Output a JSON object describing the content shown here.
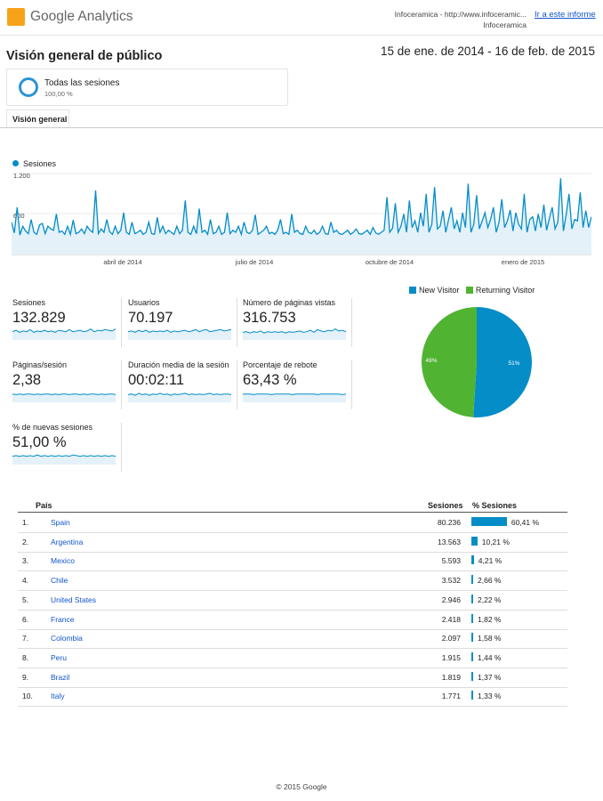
{
  "header": {
    "logo_text": "Google Analytics",
    "account_line1": "Infoceramica - http://www.infoceramic...",
    "account_line2": "Infoceramica",
    "open_report_link": "Ir a este informe"
  },
  "page": {
    "title": "Visión general de público",
    "date_range": "15 de ene. de 2014 - 16 de feb. de 2015"
  },
  "segment": {
    "name": "Todas las sesiones",
    "percent": "100,00 %"
  },
  "tab": {
    "label": "Visión general"
  },
  "colors": {
    "accent": "#058dc7",
    "link": "#1155cc",
    "new_visitor": "#058dc7",
    "returning_visitor": "#50b432",
    "logo": "#f7a31a"
  },
  "chart_data": [
    {
      "type": "line",
      "series": [
        {
          "name": "Sesiones"
        }
      ],
      "ylim": [
        0,
        1200
      ],
      "y_ticks": [
        "1.200",
        "600"
      ],
      "x_tick_labels": [
        "abril de 2014",
        "julio de 2014",
        "octubre de 2014",
        "enero de 2015"
      ],
      "y_profile": [
        480,
        320,
        700,
        290,
        420,
        350,
        310,
        520,
        330,
        300,
        440,
        460,
        310,
        420,
        380,
        360,
        600,
        330,
        350,
        300,
        420,
        300,
        510,
        310,
        330,
        380,
        310,
        420,
        360,
        330,
        950,
        310,
        380,
        330,
        520,
        340,
        300,
        420,
        310,
        360,
        620,
        330,
        300,
        480,
        310,
        330,
        360,
        300,
        330,
        480,
        310,
        300,
        550,
        330,
        420,
        310,
        360,
        330,
        300,
        420,
        310,
        360,
        800,
        330,
        300,
        420,
        310,
        680,
        330,
        360,
        300,
        520,
        310,
        330,
        420,
        300,
        330,
        620,
        310,
        360,
        330,
        420,
        300,
        480,
        330,
        310,
        360,
        590,
        300,
        330,
        360,
        420,
        310,
        330,
        300,
        360,
        520,
        310,
        330,
        300,
        600,
        330,
        360,
        310,
        300,
        420,
        330,
        310,
        360,
        300,
        330,
        420,
        310,
        300,
        480,
        330,
        360,
        310,
        300,
        330,
        360,
        300,
        330,
        380,
        310,
        300,
        330,
        360,
        300,
        400,
        320,
        300,
        330,
        360,
        850,
        330,
        390,
        760,
        330,
        420,
        600,
        330,
        800,
        400,
        500,
        330,
        620,
        420,
        900,
        330,
        450,
        1000,
        380,
        420,
        650,
        330,
        520,
        700,
        380,
        500,
        330,
        620,
        400,
        1050,
        330,
        450,
        880,
        380,
        500,
        620,
        400,
        520,
        700,
        330,
        480,
        820,
        400,
        500,
        660,
        350,
        620,
        450,
        380,
        900,
        330,
        520,
        560,
        350,
        600,
        400,
        740,
        360,
        540,
        700,
        380,
        480,
        1130,
        350,
        600,
        900,
        380,
        520,
        500,
        920,
        400,
        650,
        400,
        560
      ]
    },
    {
      "type": "pie",
      "legend_position": "top",
      "series": [
        {
          "name": "New Visitor",
          "value": 51,
          "label": "51%"
        },
        {
          "name": "Returning Visitor",
          "value": 49,
          "label": "49%"
        }
      ]
    }
  ],
  "metrics": [
    {
      "label": "Sesiones",
      "value": "132.829",
      "spark": [
        12,
        14,
        11,
        13,
        12,
        15,
        11,
        13,
        12,
        14,
        12,
        13,
        11,
        14,
        13,
        12,
        15,
        12,
        13,
        14,
        12,
        13,
        16,
        12,
        14,
        13,
        15,
        14,
        13,
        16
      ]
    },
    {
      "label": "Usuarios",
      "value": "70.197",
      "spark": [
        12,
        13,
        11,
        14,
        12,
        14,
        11,
        13,
        12,
        13,
        12,
        14,
        11,
        13,
        12,
        13,
        14,
        12,
        13,
        15,
        12,
        14,
        15,
        12,
        13,
        14,
        15,
        13,
        14,
        15
      ]
    },
    {
      "label": "Número de páginas vistas",
      "value": "316.753",
      "spark": [
        11,
        12,
        10,
        12,
        11,
        13,
        10,
        12,
        11,
        12,
        11,
        12,
        10,
        12,
        11,
        12,
        13,
        11,
        12,
        14,
        11,
        15,
        13,
        12,
        14,
        13,
        16,
        13,
        14,
        12
      ]
    },
    {
      "label": "Páginas/sesión",
      "value": "2,38",
      "spark": [
        12,
        11,
        12,
        11,
        12,
        12,
        11,
        12,
        11,
        12,
        12,
        11,
        12,
        11,
        12,
        12,
        11,
        12,
        12,
        11,
        12,
        11,
        12,
        12,
        11,
        12,
        11,
        12,
        12,
        11
      ]
    },
    {
      "label": "Duración media de la sesión",
      "value": "00:02:11",
      "spark": [
        11,
        12,
        10,
        13,
        11,
        12,
        10,
        12,
        11,
        13,
        11,
        12,
        10,
        12,
        11,
        12,
        13,
        11,
        12,
        11,
        12,
        11,
        12,
        13,
        11,
        12,
        11,
        12,
        12,
        11
      ]
    },
    {
      "label": "Porcentaje de rebote",
      "value": "63,43 %",
      "spark": [
        12,
        12,
        12,
        11,
        12,
        12,
        12,
        12,
        11,
        12,
        12,
        12,
        12,
        12,
        11,
        12,
        12,
        12,
        12,
        12,
        12,
        11,
        12,
        12,
        12,
        12,
        12,
        12,
        11,
        12
      ]
    },
    {
      "label": "% de nuevas sesiones",
      "value": "51,00 %",
      "spark": [
        12,
        13,
        12,
        13,
        12,
        13,
        12,
        14,
        12,
        13,
        12,
        13,
        12,
        13,
        12,
        13,
        12,
        14,
        13,
        12,
        13,
        12,
        13,
        12,
        13,
        12,
        13,
        12,
        13,
        12
      ]
    }
  ],
  "table": {
    "headers": {
      "country": "País",
      "sessions": "Sesiones",
      "pct": "% Sesiones"
    },
    "rows": [
      {
        "rank": "1.",
        "country": "Spain",
        "sessions": "80.236",
        "pct": "60,41 %",
        "share": 60.41
      },
      {
        "rank": "2.",
        "country": "Argentina",
        "sessions": "13.563",
        "pct": "10,21 %",
        "share": 10.21
      },
      {
        "rank": "3.",
        "country": "Mexico",
        "sessions": "5.593",
        "pct": "4,21 %",
        "share": 4.21
      },
      {
        "rank": "4.",
        "country": "Chile",
        "sessions": "3.532",
        "pct": "2,66 %",
        "share": 2.66
      },
      {
        "rank": "5.",
        "country": "United States",
        "sessions": "2.946",
        "pct": "2,22 %",
        "share": 2.22
      },
      {
        "rank": "6.",
        "country": "France",
        "sessions": "2.418",
        "pct": "1,82 %",
        "share": 1.82
      },
      {
        "rank": "7.",
        "country": "Colombia",
        "sessions": "2.097",
        "pct": "1,58 %",
        "share": 1.58
      },
      {
        "rank": "8.",
        "country": "Peru",
        "sessions": "1.915",
        "pct": "1,44 %",
        "share": 1.44
      },
      {
        "rank": "9.",
        "country": "Brazil",
        "sessions": "1.819",
        "pct": "1,37 %",
        "share": 1.37
      },
      {
        "rank": "10.",
        "country": "Italy",
        "sessions": "1.771",
        "pct": "1,33 %",
        "share": 1.33
      }
    ]
  },
  "footer": {
    "copyright": "© 2015 Google"
  }
}
